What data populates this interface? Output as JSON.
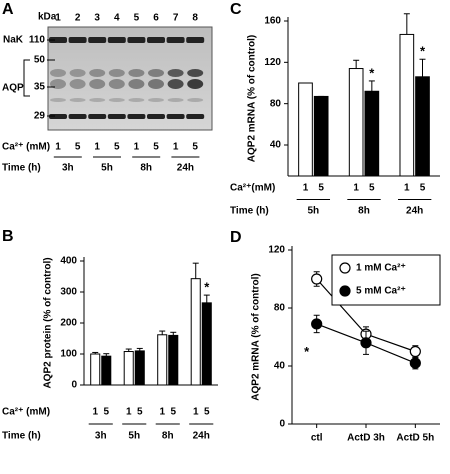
{
  "blot": {
    "panel": "A",
    "unit": "kDa",
    "lanes": [
      "1",
      "2",
      "3",
      "4",
      "5",
      "6",
      "7",
      "8"
    ],
    "bands": [
      "NaK",
      "AQP"
    ],
    "markers": [
      110,
      50,
      35,
      29
    ],
    "ca_label": "Ca²⁺ (mM)",
    "ca": [
      "1",
      "5",
      "1",
      "5",
      "1",
      "5",
      "1",
      "5"
    ],
    "time_label": "Time (h)",
    "times": [
      "3h",
      "5h",
      "8h",
      "24h"
    ]
  },
  "chart_data": [
    {
      "type": "bar",
      "panel": "B",
      "ylabel": "AQP2 protein (% of control)",
      "categories": [
        "3h",
        "5h",
        "8h",
        "24h"
      ],
      "series": [
        {
          "name": "1",
          "color": "#ffffff",
          "values": [
            100,
            108,
            162,
            343
          ],
          "errors": [
            5,
            8,
            12,
            50
          ],
          "significance": [
            null,
            null,
            null,
            null
          ]
        },
        {
          "name": "5",
          "color": "#000000",
          "values": [
            93,
            110,
            160,
            265
          ],
          "errors": [
            8,
            8,
            10,
            25
          ],
          "significance": [
            null,
            null,
            null,
            "*"
          ]
        }
      ],
      "row_labels": [
        "Ca²⁺ (mM)",
        "Time (h)"
      ],
      "ylim": [
        0,
        400
      ],
      "yticks": [
        0,
        100,
        200,
        300,
        400
      ]
    },
    {
      "type": "bar",
      "panel": "C",
      "ylabel": "AQP2 mRNA (% of control)",
      "categories": [
        "5h",
        "8h",
        "24h"
      ],
      "series": [
        {
          "name": "1",
          "color": "#ffffff",
          "values": [
            100,
            114,
            147
          ],
          "errors": [
            0,
            8,
            20
          ],
          "significance": [
            null,
            null,
            null
          ]
        },
        {
          "name": "5",
          "color": "#000000",
          "values": [
            87,
            92,
            106
          ],
          "errors": [
            0,
            10,
            17
          ],
          "significance": [
            null,
            "*",
            "*"
          ]
        }
      ],
      "row_labels": [
        "Ca²⁺(mM)",
        "Time (h)"
      ],
      "ylim": [
        10,
        160
      ],
      "yticks": [
        40,
        80,
        120,
        160
      ]
    },
    {
      "type": "line",
      "panel": "D",
      "ylabel": "AQP2 mRNA (% of control)",
      "categories": [
        "ctl",
        "ActD 3h",
        "ActD 5h"
      ],
      "series": [
        {
          "name": "1 mM Ca²⁺",
          "color": "#ffffff",
          "values": [
            100,
            62,
            50
          ],
          "errors": [
            5,
            5,
            4
          ],
          "significance": [
            null,
            null,
            null
          ]
        },
        {
          "name": "5 mM Ca²⁺",
          "color": "#000000",
          "values": [
            69,
            56,
            42
          ],
          "errors": [
            6,
            8,
            4
          ],
          "significance": [
            "*",
            null,
            null
          ]
        }
      ],
      "ylim": [
        0,
        120
      ],
      "yticks": [
        0,
        40,
        80,
        120
      ]
    }
  ]
}
